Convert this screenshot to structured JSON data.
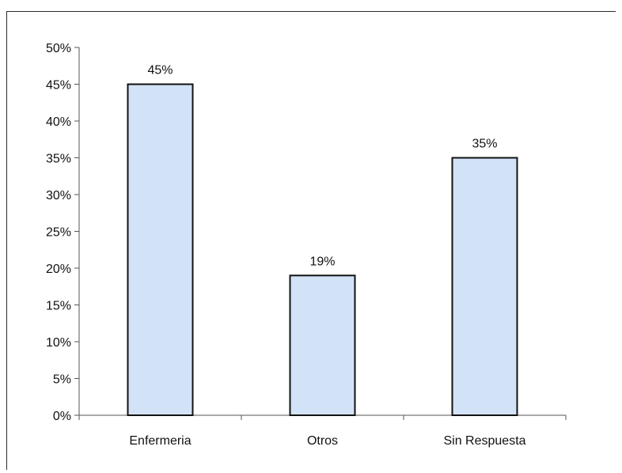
{
  "chart_data": {
    "type": "bar",
    "categories": [
      "Enfermeria",
      "Otros",
      "Sin Respuesta"
    ],
    "values": [
      45,
      19,
      35
    ],
    "data_labels": [
      "45%",
      "19%",
      "35%"
    ],
    "title": "",
    "xlabel": "",
    "ylabel": "",
    "ylim": [
      0,
      50
    ],
    "y_ticks": [
      0,
      5,
      10,
      15,
      20,
      25,
      30,
      35,
      40,
      45,
      50
    ],
    "y_tick_labels": [
      "0%",
      "5%",
      "10%",
      "15%",
      "20%",
      "25%",
      "30%",
      "35%",
      "40%",
      "45%",
      "50%"
    ],
    "grid": false,
    "legend": "none",
    "colors": {
      "bar_fill": "#d3e3f7",
      "bar_stroke": "#111111",
      "axis": "#555555"
    }
  }
}
